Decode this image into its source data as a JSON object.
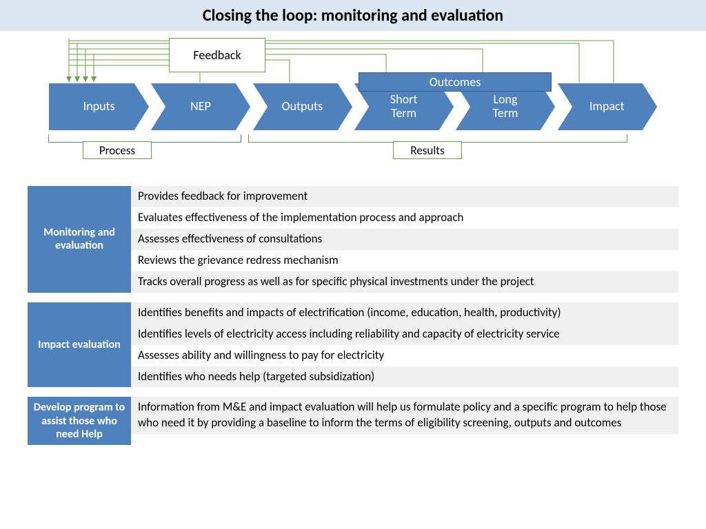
{
  "title": "Closing the loop: monitoring and evaluation",
  "diagram": {
    "type": "flowchart",
    "chevron_color": "#4f81bd",
    "chevron_stroke": "#ffffff",
    "feedback_box": {
      "label": "Feedback",
      "border": "#6a9e3e"
    },
    "outcomes_box": {
      "label": "Outcomes",
      "fill": "#4f81bd"
    },
    "process_box": {
      "label": "Process",
      "border": "#6a9e3e"
    },
    "results_box": {
      "label": "Results",
      "border": "#6a9e3e"
    },
    "stages": [
      {
        "label": "Inputs"
      },
      {
        "label": "NEP"
      },
      {
        "label": "Outputs"
      },
      {
        "label": "Short\nTerm"
      },
      {
        "label": "Long\nTerm"
      },
      {
        "label": "Impact"
      }
    ],
    "feedback_line_color": "#6a9e3e",
    "bracket_left_color": "#4f81bd",
    "bracket_right_color": "#6a9e3e"
  },
  "sections": [
    {
      "label": "Monitoring and evaluation",
      "label_bg": "#4f81bd",
      "rows": [
        {
          "text": "Provides feedback for improvement",
          "shaded": true
        },
        {
          "text": "Evaluates effectiveness of the implementation process and approach",
          "shaded": false
        },
        {
          "text": "Assesses effectiveness of consultations",
          "shaded": true
        },
        {
          "text": "Reviews the grievance redress mechanism",
          "shaded": false
        },
        {
          "text": "Tracks overall progress as well as for specific physical investments under the project",
          "shaded": true
        }
      ]
    },
    {
      "label": "Impact evaluation",
      "label_bg": "#4f81bd",
      "rows": [
        {
          "text": "Identifies benefits and impacts of electrification (income, education, health, productivity)",
          "shaded": true
        },
        {
          "text": "Identifies levels of electricity access including reliability and capacity of electricity service",
          "shaded": true
        },
        {
          "text": "Assesses ability and willingness to pay for electricity",
          "shaded": false
        },
        {
          "text": "Identifies who needs help (targeted subsidization)",
          "shaded": true
        }
      ]
    },
    {
      "label": "Develop program to assist those who  need Help",
      "label_bg": "#4f81bd",
      "rows": [
        {
          "text": "Information from M&E and impact evaluation will help us formulate policy and a specific program to help those who need it by providing a baseline to inform the terms of eligibility screening, outputs and outcomes",
          "shaded": true
        }
      ]
    }
  ]
}
